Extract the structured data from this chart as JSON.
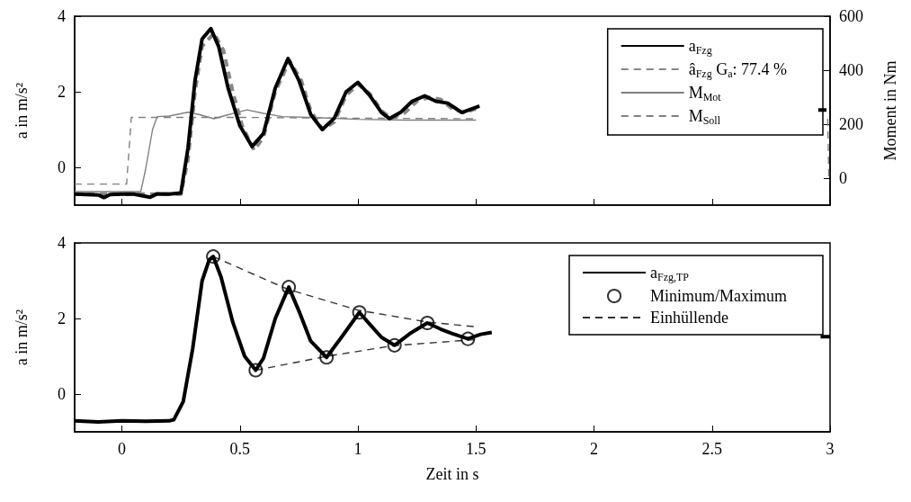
{
  "chart_data": [
    {
      "type": "line",
      "ylabel": "a in m/s²",
      "y2label": "Moment in Nm",
      "xlim": [
        -0.2,
        3
      ],
      "xticks": [
        0,
        0.5,
        1,
        1.5,
        2,
        2.5,
        3
      ],
      "ylim": [
        -1,
        4
      ],
      "yticks": [
        0,
        2,
        4
      ],
      "y2lim": [
        -100,
        600
      ],
      "y2ticks": [
        0,
        200,
        400,
        600
      ],
      "grid": false,
      "legend": "top right",
      "tick_labels": "y",
      "series": [
        {
          "name": "a$_{Fzg}$",
          "color": "#000000",
          "line_style": "solid",
          "x": [
            -0.2,
            -0.1,
            -0.076,
            -0.05,
            0.0,
            0.05,
            0.12,
            0.15,
            0.2,
            0.25,
            0.28,
            0.31,
            0.34,
            0.377,
            0.41,
            0.45,
            0.5,
            0.552,
            0.6,
            0.65,
            0.704,
            0.75,
            0.8,
            0.849,
            0.9,
            0.95,
            1.0,
            1.05,
            1.1,
            1.134,
            1.18,
            1.23,
            1.283,
            1.33,
            1.38,
            1.44,
            1.515,
            1.53,
            2.95,
            2.985
          ],
          "values": [
            -0.71,
            -0.73,
            -0.8,
            -0.72,
            -0.71,
            -0.71,
            -0.79,
            -0.7,
            -0.71,
            -0.68,
            0.5,
            2.3,
            3.4,
            3.67,
            3.2,
            2.1,
            1.1,
            0.55,
            0.9,
            2.1,
            2.88,
            2.3,
            1.4,
            1.0,
            1.3,
            2.0,
            2.25,
            1.9,
            1.45,
            1.29,
            1.45,
            1.75,
            1.89,
            1.75,
            1.7,
            1.45,
            1.62,
            null,
            1.52,
            1.52
          ]
        },
        {
          "name": "â$_{Fzg}$ G$_{a}$: 77.4 %",
          "color": "#888888",
          "line_style": "dashed",
          "x": [
            -0.2,
            0.25,
            0.28,
            0.31,
            0.34,
            0.39,
            0.43,
            0.47,
            0.51,
            0.56,
            0.6,
            0.65,
            0.71,
            0.76,
            0.8,
            0.85,
            0.9,
            0.95,
            1.0,
            1.05,
            1.1,
            1.14,
            1.2,
            1.25,
            1.3,
            1.35,
            1.4,
            1.45,
            1.5
          ],
          "values": [
            -0.71,
            -0.71,
            0.2,
            2.0,
            3.2,
            3.55,
            3.1,
            2.0,
            1.1,
            0.45,
            0.8,
            2.0,
            2.82,
            2.3,
            1.5,
            1.0,
            1.2,
            1.9,
            2.2,
            1.95,
            1.5,
            1.3,
            1.45,
            1.75,
            1.85,
            1.8,
            1.55,
            1.45,
            1.55
          ]
        },
        {
          "name": "M$_{Mot}$",
          "color": "#808080",
          "line_style": "solid",
          "axis": "y2",
          "x": [
            -0.2,
            0.08,
            0.1,
            0.13,
            0.15,
            0.2,
            0.28,
            0.33,
            0.39,
            0.45,
            0.53,
            0.6,
            0.68,
            0.8,
            1.0,
            1.2,
            1.5
          ],
          "values": [
            -50,
            -50,
            30,
            180,
            228,
            230,
            244,
            235,
            220,
            235,
            253,
            240,
            228,
            225,
            218,
            215,
            215
          ]
        },
        {
          "name": "M$_{Soll}$",
          "color": "#808080",
          "line_style": "dashed",
          "axis": "y2",
          "x": [
            -0.2,
            0.02,
            0.03,
            0.04,
            0.5,
            1.0,
            1.5,
            1.53,
            2.99,
            2.995,
            3.0
          ],
          "values": [
            -22,
            -22,
            100,
            225,
            225,
            222,
            220,
            null,
            220,
            -10,
            -10
          ]
        }
      ]
    },
    {
      "type": "line",
      "ylabel": "a in m/s²",
      "xlabel": "Zeit in s",
      "xlim": [
        -0.2,
        3
      ],
      "xticks": [
        0,
        0.5,
        1,
        1.5,
        2,
        2.5,
        3
      ],
      "ylim": [
        -1,
        4
      ],
      "yticks": [
        0,
        2,
        4
      ],
      "grid": false,
      "legend": "top right",
      "series": [
        {
          "name": "a$_{Fzg,TP}$",
          "color": "#000000",
          "line_style": "solid",
          "x": [
            -0.2,
            -0.1,
            0,
            0.1,
            0.2,
            0.22,
            0.26,
            0.3,
            0.34,
            0.37,
            0.387,
            0.42,
            0.47,
            0.52,
            0.567,
            0.6,
            0.65,
            0.707,
            0.75,
            0.8,
            0.867,
            0.93,
            1.006,
            1.05,
            1.1,
            1.155,
            1.22,
            1.294,
            1.35,
            1.4,
            1.466,
            1.52,
            1.567,
            1.58,
            2.96,
            3.0
          ],
          "values": [
            -0.71,
            -0.74,
            -0.71,
            -0.72,
            -0.71,
            -0.68,
            -0.2,
            1.2,
            3.0,
            3.55,
            3.64,
            3.1,
            1.9,
            1.0,
            0.63,
            0.95,
            2.0,
            2.83,
            2.2,
            1.4,
            0.97,
            1.5,
            2.16,
            1.85,
            1.5,
            1.29,
            1.6,
            1.88,
            1.72,
            1.6,
            1.46,
            1.58,
            1.63,
            null,
            1.52,
            1.52
          ]
        },
        {
          "name": "Minimum/Maximum",
          "type": "scatter",
          "marker": "circle",
          "color": "#000000",
          "x": [
            0.387,
            0.567,
            0.707,
            0.867,
            1.006,
            1.155,
            1.294,
            1.466
          ],
          "values": [
            3.64,
            0.63,
            2.83,
            0.97,
            2.16,
            1.29,
            1.88,
            1.46
          ]
        },
        {
          "name": "Einhüllende",
          "color": "#333333",
          "line_style": "dashed",
          "x": [
            0.387,
            0.7,
            1.0,
            1.3,
            1.5
          ],
          "values": [
            3.64,
            2.78,
            2.22,
            1.9,
            1.78
          ]
        },
        {
          "color": "#333333",
          "line_style": "dashed",
          "x": [
            0.567,
            0.87,
            1.15,
            1.45,
            1.5
          ],
          "values": [
            0.63,
            1.0,
            1.28,
            1.42,
            1.44
          ]
        }
      ]
    }
  ]
}
